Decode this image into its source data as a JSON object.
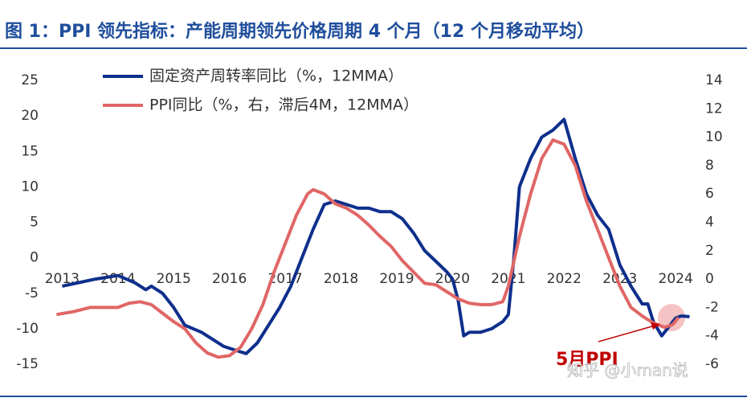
{
  "chart_data": {
    "type": "line",
    "title": "图 1：PPI 领先指标：产能周期领先价格周期 4 个月（12 个月移动平均）",
    "annotation": "5月PPI",
    "watermark": "知乎 @小man说",
    "xlim": [
      2012.75,
      2024.3
    ],
    "xticks": [
      2013,
      2014,
      2015,
      2016,
      2017,
      2018,
      2019,
      2020,
      2021,
      2022,
      2023,
      2024
    ],
    "ylim": [
      -15,
      25
    ],
    "yticks": [
      -15,
      -10,
      -5,
      0,
      5,
      10,
      15,
      20,
      25
    ],
    "y2lim": [
      -6,
      14
    ],
    "y2ticks": [
      -6,
      -4,
      -2,
      0,
      2,
      4,
      6,
      8,
      10,
      12,
      14
    ],
    "series": [
      {
        "name": "固定资产周转率同比（%，12MMA）",
        "color": "#0e2f8c",
        "axis": "y",
        "x": [
          2013.0,
          2013.3,
          2013.6,
          2014.0,
          2014.3,
          2014.5,
          2014.6,
          2014.8,
          2015.0,
          2015.2,
          2015.5,
          2015.7,
          2015.9,
          2016.1,
          2016.3,
          2016.5,
          2016.7,
          2016.9,
          2017.1,
          2017.3,
          2017.5,
          2017.7,
          2017.9,
          2018.1,
          2018.3,
          2018.5,
          2018.7,
          2018.9,
          2019.1,
          2019.3,
          2019.5,
          2019.7,
          2019.9,
          2020.0,
          2020.1,
          2020.2,
          2020.3,
          2020.5,
          2020.7,
          2020.9,
          2021.0,
          2021.1,
          2021.2,
          2021.4,
          2021.6,
          2021.8,
          2022.0,
          2022.2,
          2022.4,
          2022.6,
          2022.8,
          2023.0,
          2023.2,
          2023.4,
          2023.5,
          2023.6,
          2023.75,
          2023.85,
          2024.0,
          2024.1,
          2024.25
        ],
        "values": [
          -4,
          -3.5,
          -3,
          -2.5,
          -3.5,
          -4.5,
          -4,
          -5,
          -7,
          -9.5,
          -10.5,
          -11.5,
          -12.5,
          -13,
          -13.5,
          -12,
          -9.5,
          -7,
          -4,
          0,
          4,
          7.5,
          8,
          7.5,
          7,
          7,
          6.5,
          6.5,
          5.5,
          3.5,
          1,
          -0.5,
          -2,
          -3,
          -6,
          -11,
          -10.5,
          -10.5,
          -10,
          -9,
          -8,
          0,
          10,
          14,
          17,
          18,
          19.5,
          14,
          9,
          6,
          4,
          -1,
          -4,
          -6.5,
          -6.5,
          -9,
          -11,
          -10,
          -8.5,
          -8.2,
          -8.3
        ]
      },
      {
        "name": "PPI同比（%，右，滞后4M，12MMA）",
        "color": "#e06666",
        "axis": "y2",
        "x": [
          2012.9,
          2013.2,
          2013.5,
          2013.8,
          2014.0,
          2014.2,
          2014.4,
          2014.6,
          2014.8,
          2015.0,
          2015.2,
          2015.4,
          2015.6,
          2015.8,
          2016.0,
          2016.2,
          2016.4,
          2016.6,
          2016.8,
          2017.0,
          2017.2,
          2017.4,
          2017.5,
          2017.7,
          2017.9,
          2018.1,
          2018.3,
          2018.5,
          2018.7,
          2018.9,
          2019.1,
          2019.3,
          2019.5,
          2019.7,
          2019.9,
          2020.1,
          2020.3,
          2020.5,
          2020.7,
          2020.9,
          2021.0,
          2021.2,
          2021.4,
          2021.6,
          2021.8,
          2022.0,
          2022.2,
          2022.4,
          2022.6,
          2022.8,
          2023.0,
          2023.2,
          2023.4,
          2023.6,
          2023.8,
          2023.95,
          2024.05
        ],
        "values": [
          -2.5,
          -2.3,
          -2.0,
          -2.0,
          -2.0,
          -1.7,
          -1.6,
          -1.8,
          -2.4,
          -3.0,
          -3.5,
          -4.5,
          -5.2,
          -5.5,
          -5.4,
          -4.8,
          -3.5,
          -1.8,
          0.5,
          2.5,
          4.5,
          6.0,
          6.3,
          6.0,
          5.3,
          5.0,
          4.5,
          3.8,
          3.0,
          2.3,
          1.3,
          0.5,
          -0.3,
          -0.4,
          -0.9,
          -1.4,
          -1.7,
          -1.8,
          -1.8,
          -1.6,
          -0.5,
          3.0,
          6.0,
          8.5,
          9.8,
          9.5,
          8.0,
          5.5,
          3.5,
          1.5,
          -0.5,
          -2.0,
          -2.6,
          -3.1,
          -3.4,
          -3.2,
          -2.7
        ]
      }
    ]
  }
}
